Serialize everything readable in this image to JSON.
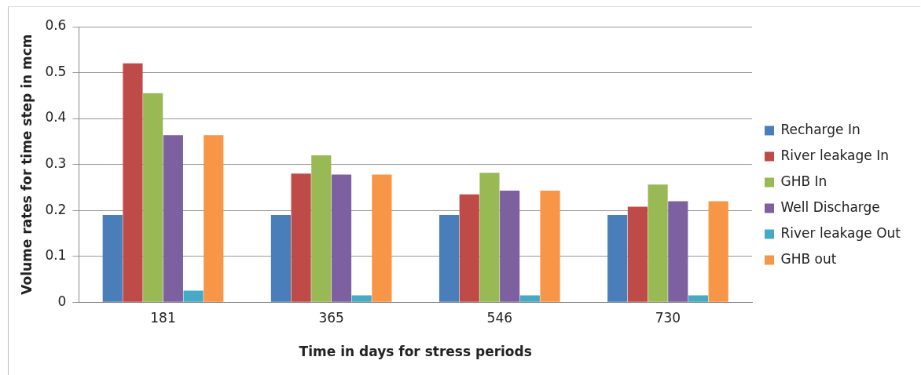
{
  "chart_data": {
    "type": "bar",
    "xlabel": "Time in days for stress periods",
    "ylabel": "Volume rates for time step in mcm",
    "categories": [
      "181",
      "365",
      "546",
      "730"
    ],
    "series": [
      {
        "name": "Recharge In",
        "color": "#4a7ebb",
        "values": [
          0.19,
          0.19,
          0.19,
          0.19
        ]
      },
      {
        "name": "River leakage In",
        "color": "#be4b48",
        "values": [
          0.52,
          0.28,
          0.235,
          0.208
        ]
      },
      {
        "name": "GHB In",
        "color": "#98b954",
        "values": [
          0.455,
          0.32,
          0.282,
          0.256
        ]
      },
      {
        "name": "Well Discharge",
        "color": "#7d60a0",
        "values": [
          0.364,
          0.278,
          0.243,
          0.22
        ]
      },
      {
        "name": "River leakage Out",
        "color": "#46aac5",
        "values": [
          0.025,
          0.015,
          0.015,
          0.015
        ]
      },
      {
        "name": "GHB out",
        "color": "#f79646",
        "values": [
          0.364,
          0.278,
          0.243,
          0.22
        ]
      }
    ],
    "ylim": [
      0,
      0.6
    ],
    "yticks": [
      0,
      0.1,
      0.2,
      0.3,
      0.4,
      0.5,
      0.6
    ],
    "grid": "y",
    "legend": "right"
  }
}
